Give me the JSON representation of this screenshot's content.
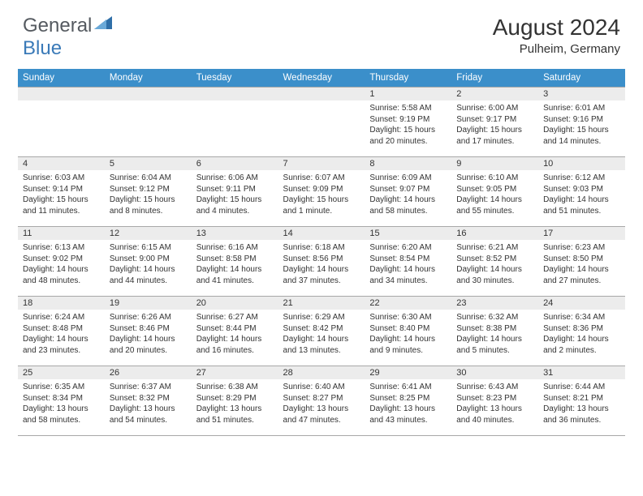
{
  "logo": {
    "general": "General",
    "blue": "Blue"
  },
  "title": "August 2024",
  "location": "Pulheim, Germany",
  "headers": [
    "Sunday",
    "Monday",
    "Tuesday",
    "Wednesday",
    "Thursday",
    "Friday",
    "Saturday"
  ],
  "colors": {
    "header_bg": "#3b8fca",
    "header_text": "#ffffff",
    "daynum_bg": "#ececec",
    "border": "#a8a8a8",
    "logo_general": "#555a60",
    "logo_blue": "#3a7ab8"
  },
  "weeks": [
    [
      null,
      null,
      null,
      null,
      {
        "n": "1",
        "sr": "5:58 AM",
        "ss": "9:19 PM",
        "dl": "15 hours and 20 minutes."
      },
      {
        "n": "2",
        "sr": "6:00 AM",
        "ss": "9:17 PM",
        "dl": "15 hours and 17 minutes."
      },
      {
        "n": "3",
        "sr": "6:01 AM",
        "ss": "9:16 PM",
        "dl": "15 hours and 14 minutes."
      }
    ],
    [
      {
        "n": "4",
        "sr": "6:03 AM",
        "ss": "9:14 PM",
        "dl": "15 hours and 11 minutes."
      },
      {
        "n": "5",
        "sr": "6:04 AM",
        "ss": "9:12 PM",
        "dl": "15 hours and 8 minutes."
      },
      {
        "n": "6",
        "sr": "6:06 AM",
        "ss": "9:11 PM",
        "dl": "15 hours and 4 minutes."
      },
      {
        "n": "7",
        "sr": "6:07 AM",
        "ss": "9:09 PM",
        "dl": "15 hours and 1 minute."
      },
      {
        "n": "8",
        "sr": "6:09 AM",
        "ss": "9:07 PM",
        "dl": "14 hours and 58 minutes."
      },
      {
        "n": "9",
        "sr": "6:10 AM",
        "ss": "9:05 PM",
        "dl": "14 hours and 55 minutes."
      },
      {
        "n": "10",
        "sr": "6:12 AM",
        "ss": "9:03 PM",
        "dl": "14 hours and 51 minutes."
      }
    ],
    [
      {
        "n": "11",
        "sr": "6:13 AM",
        "ss": "9:02 PM",
        "dl": "14 hours and 48 minutes."
      },
      {
        "n": "12",
        "sr": "6:15 AM",
        "ss": "9:00 PM",
        "dl": "14 hours and 44 minutes."
      },
      {
        "n": "13",
        "sr": "6:16 AM",
        "ss": "8:58 PM",
        "dl": "14 hours and 41 minutes."
      },
      {
        "n": "14",
        "sr": "6:18 AM",
        "ss": "8:56 PM",
        "dl": "14 hours and 37 minutes."
      },
      {
        "n": "15",
        "sr": "6:20 AM",
        "ss": "8:54 PM",
        "dl": "14 hours and 34 minutes."
      },
      {
        "n": "16",
        "sr": "6:21 AM",
        "ss": "8:52 PM",
        "dl": "14 hours and 30 minutes."
      },
      {
        "n": "17",
        "sr": "6:23 AM",
        "ss": "8:50 PM",
        "dl": "14 hours and 27 minutes."
      }
    ],
    [
      {
        "n": "18",
        "sr": "6:24 AM",
        "ss": "8:48 PM",
        "dl": "14 hours and 23 minutes."
      },
      {
        "n": "19",
        "sr": "6:26 AM",
        "ss": "8:46 PM",
        "dl": "14 hours and 20 minutes."
      },
      {
        "n": "20",
        "sr": "6:27 AM",
        "ss": "8:44 PM",
        "dl": "14 hours and 16 minutes."
      },
      {
        "n": "21",
        "sr": "6:29 AM",
        "ss": "8:42 PM",
        "dl": "14 hours and 13 minutes."
      },
      {
        "n": "22",
        "sr": "6:30 AM",
        "ss": "8:40 PM",
        "dl": "14 hours and 9 minutes."
      },
      {
        "n": "23",
        "sr": "6:32 AM",
        "ss": "8:38 PM",
        "dl": "14 hours and 5 minutes."
      },
      {
        "n": "24",
        "sr": "6:34 AM",
        "ss": "8:36 PM",
        "dl": "14 hours and 2 minutes."
      }
    ],
    [
      {
        "n": "25",
        "sr": "6:35 AM",
        "ss": "8:34 PM",
        "dl": "13 hours and 58 minutes."
      },
      {
        "n": "26",
        "sr": "6:37 AM",
        "ss": "8:32 PM",
        "dl": "13 hours and 54 minutes."
      },
      {
        "n": "27",
        "sr": "6:38 AM",
        "ss": "8:29 PM",
        "dl": "13 hours and 51 minutes."
      },
      {
        "n": "28",
        "sr": "6:40 AM",
        "ss": "8:27 PM",
        "dl": "13 hours and 47 minutes."
      },
      {
        "n": "29",
        "sr": "6:41 AM",
        "ss": "8:25 PM",
        "dl": "13 hours and 43 minutes."
      },
      {
        "n": "30",
        "sr": "6:43 AM",
        "ss": "8:23 PM",
        "dl": "13 hours and 40 minutes."
      },
      {
        "n": "31",
        "sr": "6:44 AM",
        "ss": "8:21 PM",
        "dl": "13 hours and 36 minutes."
      }
    ]
  ],
  "labels": {
    "sunrise": "Sunrise: ",
    "sunset": "Sunset: ",
    "daylight": "Daylight: "
  }
}
